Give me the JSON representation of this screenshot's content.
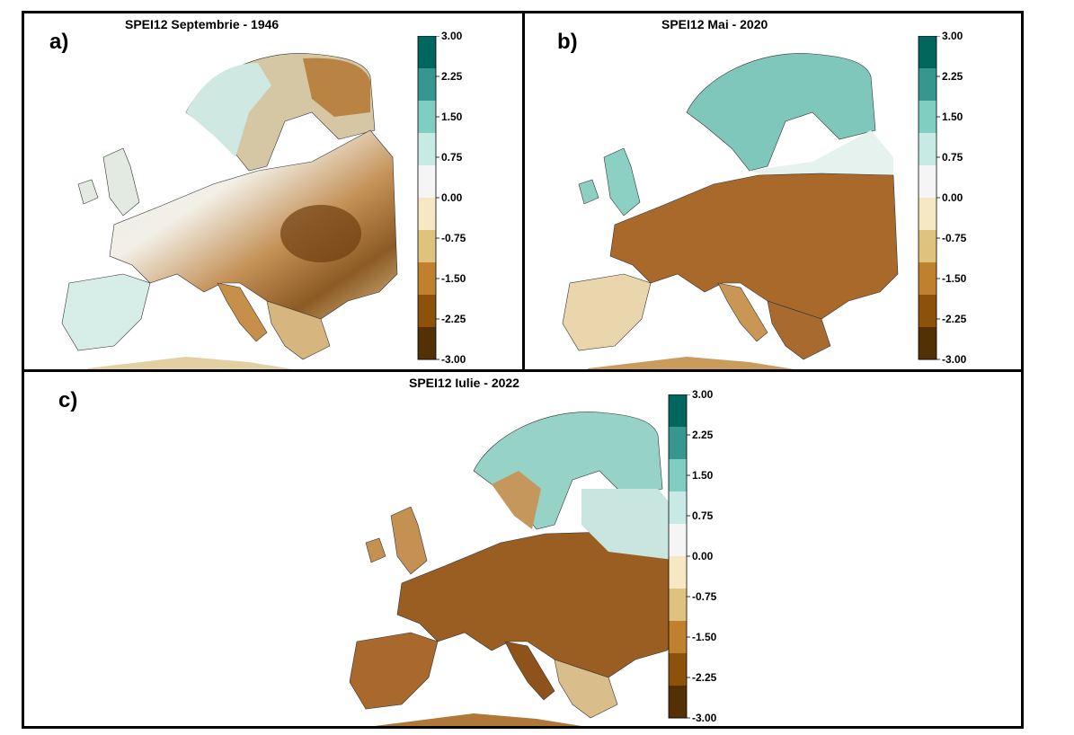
{
  "panels": [
    {
      "label": "a)",
      "title": "SPEI12 Septembrie - 1946"
    },
    {
      "label": "b)",
      "title": "SPEI12 Mai - 2020"
    },
    {
      "label": "c)",
      "title": "SPEI12 Iulie - 2022"
    }
  ],
  "colorbar": {
    "ticks": [
      "3.00",
      "2.25",
      "1.50",
      "0.75",
      "0.00",
      "-0.75",
      "-1.50",
      "-2.25",
      "-3.00"
    ],
    "colors": [
      "#01665e",
      "#35978f",
      "#80cdc1",
      "#c7eae5",
      "#f5f5f5",
      "#f6e8c3",
      "#dfc27d",
      "#bf812d",
      "#8c510a",
      "#543005"
    ]
  },
  "map_legend": {
    "variable": "SPEI12",
    "range": [
      -3.0,
      3.0
    ]
  }
}
